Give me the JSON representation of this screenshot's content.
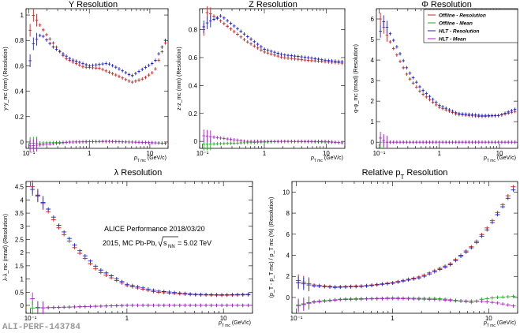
{
  "colors": {
    "offline_resolution": "#cc2222",
    "offline_mean": "#22aa22",
    "hlt_resolution": "#2222cc",
    "hlt_mean": "#aa22cc"
  },
  "legend": [
    {
      "label": "Offline - Resolution",
      "color": "#cc2222"
    },
    {
      "label": "Offline - Mean",
      "color": "#22aa22"
    },
    {
      "label": "HLT - Resolution",
      "color": "#2222cc"
    },
    {
      "label": "HLT - Mean",
      "color": "#aa22cc"
    }
  ],
  "annotation": {
    "line1": "ALICE Performance 2018/03/20",
    "line2_prefix": "2015, MC Pb-Pb,",
    "sqrt_s": "s",
    "sqrt_sub": "NN",
    "line2_suffix": " = 5.02 TeV"
  },
  "watermark": "ALI-PERF-143784",
  "chart_data": [
    {
      "id": "y",
      "type": "scatter",
      "title": "Y Resolution",
      "xlabel_main": "p",
      "xlabel_sub": "T mc",
      "xlabel_unit": "(GeV/c)",
      "ylabel": "y-y_mc (mm) (Resolution)",
      "xscale": "log",
      "xlim": [
        0.09,
        20
      ],
      "ylim": [
        -0.05,
        1.05
      ],
      "xticks": [
        {
          "v": 0.1,
          "label": "10⁻¹"
        },
        {
          "v": 1,
          "label": "1"
        },
        {
          "v": 10,
          "label": "10"
        }
      ],
      "yticks": [
        {
          "v": 0,
          "label": "0"
        },
        {
          "v": 0.2,
          "label": "0.2"
        },
        {
          "v": 0.4,
          "label": "0.4"
        },
        {
          "v": 0.6,
          "label": "0.6"
        },
        {
          "v": 0.8,
          "label": "0.8"
        },
        {
          "v": 1,
          "label": "1"
        }
      ],
      "curves": [
        {
          "name": "Offline - Resolution",
          "color": "#cc2222",
          "points": [
            [
              0.105,
              0.88
            ],
            [
              0.11,
              1.02
            ],
            [
              0.13,
              0.97
            ],
            [
              0.2,
              0.84
            ],
            [
              0.4,
              0.66
            ],
            [
              0.8,
              0.59
            ],
            [
              1.5,
              0.58
            ],
            [
              3,
              0.52
            ],
            [
              5,
              0.47
            ],
            [
              8,
              0.5
            ],
            [
              12,
              0.56
            ],
            [
              18,
              0.78
            ]
          ]
        },
        {
          "name": "HLT - Resolution",
          "color": "#2222cc",
          "points": [
            [
              0.105,
              0.64
            ],
            [
              0.11,
              0.75
            ],
            [
              0.13,
              0.8
            ],
            [
              0.16,
              0.85
            ],
            [
              0.25,
              0.75
            ],
            [
              0.5,
              0.65
            ],
            [
              1,
              0.6
            ],
            [
              2,
              0.62
            ],
            [
              3,
              0.58
            ],
            [
              5,
              0.52
            ],
            [
              8,
              0.58
            ],
            [
              12,
              0.63
            ],
            [
              18,
              0.8
            ]
          ]
        },
        {
          "name": "Offline - Mean",
          "color": "#22aa22",
          "points": [
            [
              0.105,
              -0.01
            ],
            [
              0.5,
              0.0
            ],
            [
              2,
              0.005
            ],
            [
              10,
              -0.005
            ],
            [
              18,
              -0.01
            ]
          ]
        },
        {
          "name": "HLT - Mean",
          "color": "#aa22cc",
          "points": [
            [
              0.105,
              -0.03
            ],
            [
              0.5,
              0.0
            ],
            [
              2,
              0.005
            ],
            [
              10,
              -0.005
            ],
            [
              18,
              -0.01
            ]
          ]
        }
      ]
    },
    {
      "id": "z",
      "type": "scatter",
      "title": "Z Resolution",
      "xlabel_main": "p",
      "xlabel_sub": "T mc",
      "xlabel_unit": "(GeV/c)",
      "ylabel": "z-z_mc (mm) (Resolution)",
      "xscale": "log",
      "xlim": [
        0.09,
        20
      ],
      "ylim": [
        -0.05,
        0.95
      ],
      "xticks": [
        {
          "v": 0.1,
          "label": "10⁻¹"
        },
        {
          "v": 1,
          "label": "1"
        },
        {
          "v": 10,
          "label": "10"
        }
      ],
      "yticks": [
        {
          "v": 0,
          "label": "0"
        },
        {
          "v": 0.2,
          "label": "0.2"
        },
        {
          "v": 0.4,
          "label": "0.4"
        },
        {
          "v": 0.6,
          "label": "0.6"
        },
        {
          "v": 0.8,
          "label": "0.8"
        }
      ],
      "curves": [
        {
          "name": "Offline - Resolution",
          "color": "#cc2222",
          "points": [
            [
              0.105,
              0.8
            ],
            [
              0.12,
              0.93
            ],
            [
              0.2,
              0.86
            ],
            [
              0.5,
              0.72
            ],
            [
              1,
              0.64
            ],
            [
              2,
              0.6
            ],
            [
              5,
              0.58
            ],
            [
              10,
              0.57
            ],
            [
              18,
              0.56
            ]
          ]
        },
        {
          "name": "HLT - Resolution",
          "color": "#2222cc",
          "points": [
            [
              0.105,
              0.82
            ],
            [
              0.12,
              0.85
            ],
            [
              0.2,
              0.9
            ],
            [
              0.5,
              0.76
            ],
            [
              1,
              0.66
            ],
            [
              2,
              0.62
            ],
            [
              5,
              0.6
            ],
            [
              10,
              0.58
            ],
            [
              18,
              0.57
            ]
          ]
        },
        {
          "name": "Offline - Mean",
          "color": "#22aa22",
          "points": [
            [
              0.105,
              -0.02
            ],
            [
              0.5,
              -0.01
            ],
            [
              2,
              0.0
            ],
            [
              10,
              -0.005
            ],
            [
              18,
              -0.01
            ]
          ]
        },
        {
          "name": "HLT - Mean",
          "color": "#aa22cc",
          "points": [
            [
              0.105,
              0.04
            ],
            [
              0.5,
              0.0
            ],
            [
              2,
              0.0
            ],
            [
              10,
              0.0
            ],
            [
              18,
              -0.01
            ]
          ]
        }
      ]
    },
    {
      "id": "phi",
      "type": "scatter",
      "title": "Φ Resolution",
      "xlabel_main": "p",
      "xlabel_sub": "T mc",
      "xlabel_unit": "(GeV/c)",
      "ylabel": "φ-φ_mc (mrad) (Resolution)",
      "xscale": "log",
      "xlim": [
        0.09,
        20
      ],
      "ylim": [
        -0.3,
        6.5
      ],
      "xticks": [
        {
          "v": 0.1,
          "label": "10⁻¹"
        },
        {
          "v": 1,
          "label": "1"
        },
        {
          "v": 10,
          "label": "10"
        }
      ],
      "yticks": [
        {
          "v": 0,
          "label": "0"
        },
        {
          "v": 1,
          "label": "1"
        },
        {
          "v": 2,
          "label": "2"
        },
        {
          "v": 3,
          "label": "3"
        },
        {
          "v": 4,
          "label": "4"
        },
        {
          "v": 5,
          "label": "5"
        },
        {
          "v": 6,
          "label": "6"
        }
      ],
      "curves": [
        {
          "name": "Offline - Resolution",
          "color": "#cc2222",
          "points": [
            [
              0.105,
              6.0
            ],
            [
              0.13,
              5.3
            ],
            [
              0.2,
              4.2
            ],
            [
              0.3,
              3.2
            ],
            [
              0.5,
              2.4
            ],
            [
              1,
              1.7
            ],
            [
              2,
              1.35
            ],
            [
              5,
              1.25
            ],
            [
              10,
              1.3
            ],
            [
              18,
              1.5
            ]
          ]
        },
        {
          "name": "HLT - Resolution",
          "color": "#2222cc",
          "points": [
            [
              0.105,
              5.4
            ],
            [
              0.12,
              5.9
            ],
            [
              0.2,
              4.6
            ],
            [
              0.3,
              3.5
            ],
            [
              0.5,
              2.6
            ],
            [
              1,
              1.8
            ],
            [
              2,
              1.4
            ],
            [
              5,
              1.3
            ],
            [
              10,
              1.3
            ],
            [
              18,
              1.6
            ]
          ]
        },
        {
          "name": "Offline - Mean",
          "color": "#22aa22",
          "points": [
            [
              0.105,
              0.0
            ],
            [
              1,
              0.0
            ],
            [
              18,
              0.0
            ]
          ]
        },
        {
          "name": "HLT - Mean",
          "color": "#aa22cc",
          "points": [
            [
              0.105,
              0.2
            ],
            [
              0.13,
              0.0
            ],
            [
              1,
              0.0
            ],
            [
              18,
              0.0
            ]
          ]
        }
      ]
    },
    {
      "id": "lambda",
      "type": "scatter",
      "title": "λ Resolution",
      "xlabel_main": "p",
      "xlabel_sub": "T mc",
      "xlabel_unit": "(GeV/c)",
      "ylabel": "λ-λ_mc (mrad) (Resolution)",
      "xscale": "log",
      "xlim": [
        0.09,
        20
      ],
      "ylim": [
        -0.3,
        4.7
      ],
      "xticks": [
        {
          "v": 0.1,
          "label": "10⁻¹"
        },
        {
          "v": 1,
          "label": "1"
        },
        {
          "v": 10,
          "label": "10"
        }
      ],
      "yticks": [
        {
          "v": 0,
          "label": "0"
        },
        {
          "v": 0.5,
          "label": "0.5"
        },
        {
          "v": 1,
          "label": "1"
        },
        {
          "v": 1.5,
          "label": "1.5"
        },
        {
          "v": 2,
          "label": "2"
        },
        {
          "v": 2.5,
          "label": "2.5"
        },
        {
          "v": 3,
          "label": "3"
        },
        {
          "v": 3.5,
          "label": "3.5"
        },
        {
          "v": 4,
          "label": "4"
        },
        {
          "v": 4.5,
          "label": "4.5"
        }
      ],
      "curves": [
        {
          "name": "Offline - Resolution",
          "color": "#cc2222",
          "points": [
            [
              0.105,
              4.5
            ],
            [
              0.15,
              3.6
            ],
            [
              0.2,
              2.9
            ],
            [
              0.3,
              2.1
            ],
            [
              0.5,
              1.3
            ],
            [
              1,
              0.75
            ],
            [
              2,
              0.5
            ],
            [
              5,
              0.4
            ],
            [
              10,
              0.38
            ],
            [
              18,
              0.4
            ]
          ]
        },
        {
          "name": "HLT - Resolution",
          "color": "#2222cc",
          "points": [
            [
              0.105,
              4.4
            ],
            [
              0.15,
              3.7
            ],
            [
              0.2,
              3.0
            ],
            [
              0.3,
              2.2
            ],
            [
              0.5,
              1.4
            ],
            [
              1,
              0.8
            ],
            [
              2,
              0.55
            ],
            [
              5,
              0.42
            ],
            [
              10,
              0.4
            ],
            [
              18,
              0.42
            ]
          ]
        },
        {
          "name": "Offline - Mean",
          "color": "#22aa22",
          "points": [
            [
              0.105,
              -0.1
            ],
            [
              1,
              0.0
            ],
            [
              18,
              0.0
            ]
          ]
        },
        {
          "name": "HLT - Mean",
          "color": "#aa22cc",
          "points": [
            [
              0.105,
              0.25
            ],
            [
              0.12,
              -0.1
            ],
            [
              1,
              0.0
            ],
            [
              18,
              0.0
            ]
          ]
        }
      ]
    },
    {
      "id": "pt",
      "type": "scatter",
      "title": "Relative p",
      "title_sub": "T",
      "title_suffix": " Resolution",
      "xlabel_main": "p",
      "xlabel_sub": "T mc",
      "xlabel_unit": "(GeV/c)",
      "ylabel": "(p_T - p_T mc) / p_T mc (%) (Resolution)",
      "xscale": "log",
      "xlim": [
        0.09,
        20
      ],
      "ylim": [
        -1.5,
        11
      ],
      "xticks": [
        {
          "v": 0.1,
          "label": "10⁻¹"
        },
        {
          "v": 1,
          "label": "1"
        },
        {
          "v": 10,
          "label": "10"
        }
      ],
      "yticks": [
        {
          "v": 0,
          "label": "0"
        },
        {
          "v": 2,
          "label": "2"
        },
        {
          "v": 4,
          "label": "4"
        },
        {
          "v": 6,
          "label": "6"
        },
        {
          "v": 8,
          "label": "8"
        },
        {
          "v": 10,
          "label": "10"
        }
      ],
      "curves": [
        {
          "name": "Offline - Resolution",
          "color": "#cc2222",
          "points": [
            [
              0.105,
              1.6
            ],
            [
              0.15,
              1.2
            ],
            [
              0.25,
              1.0
            ],
            [
              0.5,
              1.1
            ],
            [
              1,
              1.4
            ],
            [
              2,
              2.0
            ],
            [
              4,
              3.2
            ],
            [
              7,
              5.0
            ],
            [
              10,
              6.8
            ],
            [
              14,
              8.8
            ],
            [
              18,
              10.5
            ]
          ]
        },
        {
          "name": "HLT - Resolution",
          "color": "#2222cc",
          "points": [
            [
              0.105,
              1.4
            ],
            [
              0.15,
              1.1
            ],
            [
              0.25,
              0.95
            ],
            [
              0.5,
              1.05
            ],
            [
              1,
              1.35
            ],
            [
              2,
              1.9
            ],
            [
              4,
              3.1
            ],
            [
              7,
              4.9
            ],
            [
              10,
              6.6
            ],
            [
              14,
              8.6
            ],
            [
              18,
              10.2
            ]
          ]
        },
        {
          "name": "Offline - Mean",
          "color": "#22aa22",
          "points": [
            [
              0.105,
              -0.7
            ],
            [
              0.15,
              -0.4
            ],
            [
              0.3,
              -0.15
            ],
            [
              1,
              -0.05
            ],
            [
              3,
              -0.1
            ],
            [
              5,
              -0.3
            ],
            [
              7,
              -0.5
            ],
            [
              8,
              -0.2
            ],
            [
              12,
              0.0
            ],
            [
              18,
              0.1
            ]
          ]
        },
        {
          "name": "HLT - Mean",
          "color": "#aa22cc",
          "points": [
            [
              0.105,
              -0.8
            ],
            [
              0.15,
              -0.45
            ],
            [
              0.3,
              -0.2
            ],
            [
              1,
              -0.1
            ],
            [
              3,
              -0.2
            ],
            [
              5,
              -0.35
            ],
            [
              8,
              -0.35
            ],
            [
              12,
              -0.5
            ],
            [
              18,
              -0.8
            ]
          ]
        }
      ]
    }
  ]
}
